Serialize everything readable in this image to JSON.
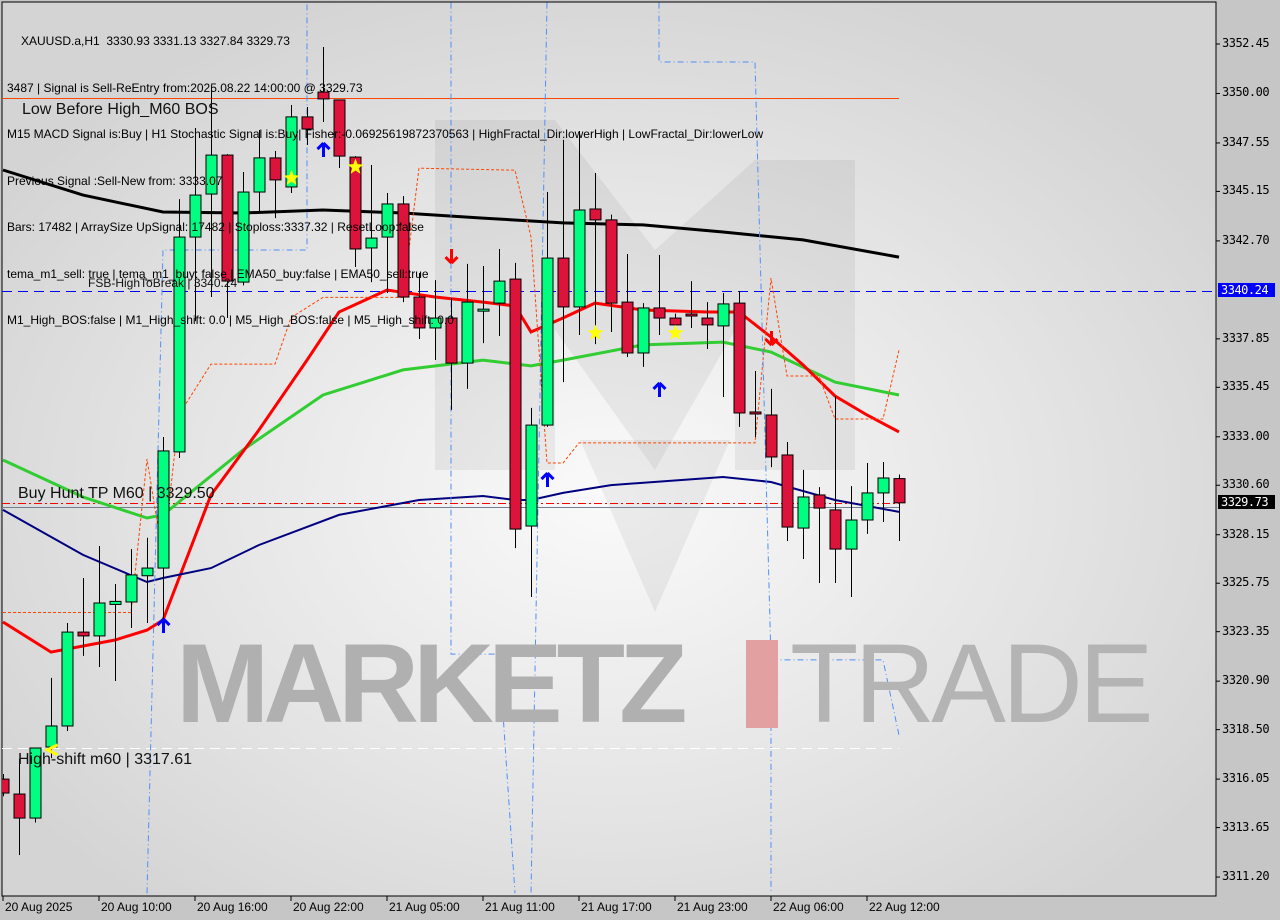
{
  "header": {
    "lines": [
      "XAUUSD.a,H1  3330.93 3331.13 3327.84 3329.73",
      "3487 | Signal is Sell-ReEntry from:2025.08.22 14:00:00 @ 3329.73",
      "M15 MACD Signal is:Buy | H1 Stochastic Signal is:Buy| Fisher:-0.06925619872370563 | HighFractal_Dir:lowerHigh | LowFractal_Dir:lowerLow",
      "Previous Signal :Sell-New from: 3333.07",
      "Bars: 17482 | ArraySize UpSignal: 17482 | Stoploss:3337.32 | ResetLoop:false",
      "tema_m1_sell: true | tema_m1_buy: false | EMA50_buy:false | EMA50_sell:true",
      "M1_High_BOS:false | M1_High_shift: 0.0 | M5_High_BOS:false | M5_High_shift: 0.0"
    ]
  },
  "watermark": {
    "part1": "MARKETZ",
    "part2": "I",
    "part3": "TRADE"
  },
  "levels": [
    {
      "label": "Low Before High_M60 BOS",
      "price": 3349.78,
      "color": "#ff4500",
      "style": "solid"
    },
    {
      "label": "FSB-HighToBreak | 3340.24",
      "price": 3340.24,
      "color": "#0000ff",
      "style": "dash"
    },
    {
      "label": "Buy Hunt TP M60 | 3329.50",
      "price": 3329.5,
      "color": "#708090",
      "style": "solid"
    },
    {
      "label": "",
      "price": 3329.73,
      "color": "#ff0000",
      "style": "dashdot"
    },
    {
      "label": "High-shift m60 | 3317.61",
      "price": 3317.61,
      "color": "#ffffff",
      "style": "dash"
    }
  ],
  "price_badges": [
    {
      "text": "3340.24",
      "bg": "#0000ff",
      "fg": "#ffffff"
    },
    {
      "text": "3329.73",
      "bg": "#000000",
      "fg": "#ffffff"
    }
  ],
  "chart_data": {
    "type": "candlestick",
    "symbol": "XAUUSD.a",
    "timeframe": "H1",
    "ylim": [
      3310.4,
      3354.5
    ],
    "y_ticks": [
      "3352.45",
      "3350.00",
      "3347.55",
      "3345.15",
      "3342.70",
      "3337.85",
      "3335.45",
      "3333.00",
      "3330.60",
      "3328.15",
      "3325.75",
      "3323.35",
      "3320.90",
      "3318.50",
      "3316.05",
      "3313.65",
      "3311.20"
    ],
    "x_tick_labels": [
      {
        "time": "20 Aug 04:00",
        "text": "20 Aug 2025"
      },
      {
        "time": "20 Aug 10:00",
        "text": "20 Aug 10:00"
      },
      {
        "time": "20 Aug 16:00",
        "text": "20 Aug 16:00"
      },
      {
        "time": "20 Aug 22:00",
        "text": "20 Aug 22:00"
      },
      {
        "time": "21 Aug 05:00",
        "text": "21 Aug 05:00"
      },
      {
        "time": "21 Aug 11:00",
        "text": "21 Aug 11:00"
      },
      {
        "time": "21 Aug 17:00",
        "text": "21 Aug 17:00"
      },
      {
        "time": "21 Aug 23:00",
        "text": "21 Aug 23:00"
      },
      {
        "time": "22 Aug 06:00",
        "text": "22 Aug 06:00"
      },
      {
        "time": "22 Aug 12:00",
        "text": "22 Aug 12:00"
      }
    ],
    "colors": {
      "bull": "#00ff80",
      "bear": "#dc143c",
      "wick": "#000000"
    },
    "candles": [
      [
        "20 Aug 04:00",
        3316.05,
        3316.3,
        3315.2,
        3315.36
      ],
      [
        "20 Aug 05:00",
        3315.31,
        3317.05,
        3312.29,
        3314.12
      ],
      [
        "20 Aug 06:00",
        3314.12,
        3317.6,
        3313.9,
        3317.59
      ],
      [
        "20 Aug 07:00",
        3317.64,
        3321.06,
        3317.09,
        3318.68
      ],
      [
        "20 Aug 08:00",
        3318.68,
        3323.78,
        3318.43,
        3323.33
      ],
      [
        "20 Aug 09:00",
        3323.33,
        3326.01,
        3322.15,
        3323.14
      ],
      [
        "20 Aug 10:00",
        3323.14,
        3327.59,
        3321.6,
        3324.77
      ],
      [
        "20 Aug 11:00",
        3324.7,
        3325.71,
        3320.91,
        3324.85
      ],
      [
        "20 Aug 12:00",
        3324.82,
        3327.44,
        3323.53,
        3326.16
      ],
      [
        "20 Aug 13:00",
        3326.12,
        3328.0,
        3323.78,
        3326.5
      ],
      [
        "20 Aug 14:00",
        3326.5,
        3332.99,
        3323.73,
        3332.3
      ],
      [
        "20 Aug 15:00",
        3332.25,
        3344.77,
        3331.95,
        3342.89
      ],
      [
        "20 Aug 16:00",
        3342.89,
        3348.29,
        3338.73,
        3344.97
      ],
      [
        "20 Aug 17:00",
        3345.02,
        3350.27,
        3339.92,
        3346.95
      ],
      [
        "20 Aug 18:00",
        3346.95,
        3347.0,
        3338.88,
        3340.71
      ],
      [
        "20 Aug 19:00",
        3340.66,
        3346.11,
        3340.5,
        3345.12
      ],
      [
        "20 Aug 20:00",
        3345.12,
        3348.19,
        3344.08,
        3346.81
      ],
      [
        "20 Aug 21:00",
        3346.81,
        3347.15,
        3343.83,
        3345.72
      ],
      [
        "20 Aug 22:00",
        3345.37,
        3349.43,
        3345.07,
        3348.84
      ],
      [
        "20 Aug 23:00",
        3348.84,
        3349.33,
        3347.45,
        3348.24
      ],
      [
        "21 Aug 01:00",
        3350.07,
        3352.3,
        3348.59,
        3349.73
      ],
      [
        "21 Aug 02:00",
        3349.68,
        3349.7,
        3346.31,
        3346.9
      ],
      [
        "21 Aug 03:00",
        3346.85,
        3346.9,
        3341.41,
        3342.3
      ],
      [
        "21 Aug 04:00",
        3342.35,
        3346.46,
        3340.66,
        3342.84
      ],
      [
        "21 Aug 05:00",
        3342.89,
        3345.07,
        3340.12,
        3344.53
      ],
      [
        "21 Aug 06:00",
        3344.53,
        3344.92,
        3339.67,
        3339.92
      ],
      [
        "21 Aug 07:00",
        3339.92,
        3341.11,
        3337.84,
        3338.39
      ],
      [
        "21 Aug 08:00",
        3338.39,
        3340.76,
        3336.8,
        3338.88
      ],
      [
        "21 Aug 09:00",
        3338.88,
        3339.87,
        3334.33,
        3336.65
      ],
      [
        "21 Aug 10:00",
        3336.65,
        3341.56,
        3335.37,
        3339.67
      ],
      [
        "21 Aug 11:00",
        3339.3,
        3341.46,
        3337.64,
        3339.32
      ],
      [
        "21 Aug 12:00",
        3339.62,
        3342.3,
        3337.99,
        3340.71
      ],
      [
        "21 Aug 13:00",
        3340.81,
        3341.61,
        3327.49,
        3328.43
      ],
      [
        "21 Aug 14:00",
        3328.58,
        3334.43,
        3325.07,
        3333.58
      ],
      [
        "21 Aug 15:00",
        3333.58,
        3345.12,
        3333.5,
        3341.85
      ],
      [
        "21 Aug 16:00",
        3341.85,
        3347.7,
        3335.71,
        3339.43
      ],
      [
        "21 Aug 17:00",
        3339.43,
        3348.14,
        3338.04,
        3344.23
      ],
      [
        "21 Aug 18:00",
        3344.28,
        3346.06,
        3337.59,
        3343.74
      ],
      [
        "21 Aug 19:00",
        3343.74,
        3344.0,
        3338.19,
        3339.62
      ],
      [
        "21 Aug 20:00",
        3339.67,
        3342.05,
        3336.95,
        3337.15
      ],
      [
        "21 Aug 21:00",
        3337.15,
        3339.62,
        3336.46,
        3339.38
      ],
      [
        "21 Aug 22:00",
        3339.38,
        3342.0,
        3338.04,
        3338.88
      ],
      [
        "21 Aug 23:00",
        3338.88,
        3339.1,
        3338.3,
        3338.54
      ],
      [
        "22 Aug 01:00",
        3339.08,
        3340.71,
        3338.39,
        3338.98
      ],
      [
        "22 Aug 02:00",
        3338.88,
        3339.67,
        3337.35,
        3338.54
      ],
      [
        "22 Aug 03:00",
        3338.49,
        3340.12,
        3334.97,
        3339.58
      ],
      [
        "22 Aug 04:00",
        3339.62,
        3340.22,
        3333.49,
        3334.18
      ],
      [
        "22 Aug 05:00",
        3334.23,
        3336.26,
        3332.99,
        3334.13
      ],
      [
        "22 Aug 06:00",
        3334.08,
        3335.37,
        3331.5,
        3332.0
      ],
      [
        "22 Aug 07:00",
        3332.1,
        3332.74,
        3327.84,
        3328.53
      ],
      [
        "22 Aug 08:00",
        3328.48,
        3331.36,
        3326.95,
        3330.02
      ],
      [
        "22 Aug 09:00",
        3330.12,
        3330.51,
        3325.76,
        3329.47
      ],
      [
        "22 Aug 10:00",
        3329.38,
        3335.02,
        3325.76,
        3327.44
      ],
      [
        "22 Aug 11:00",
        3327.44,
        3330.56,
        3325.07,
        3328.88
      ],
      [
        "22 Aug 12:00",
        3328.88,
        3331.7,
        3328.19,
        3330.22
      ],
      [
        "22 Aug 13:00",
        3330.22,
        3331.75,
        3328.78,
        3330.96
      ],
      [
        "22 Aug 14:00",
        3330.93,
        3331.13,
        3327.84,
        3329.73
      ]
    ],
    "lines": [
      {
        "color": "#000000",
        "width": 3,
        "dash": "",
        "points": [
          [
            "20 Aug 04:00",
            3346.21
          ],
          [
            "20 Aug 09:00",
            3344.97
          ],
          [
            "20 Aug 14:00",
            3344.13
          ],
          [
            "20 Aug 19:00",
            3344.08
          ],
          [
            "21 Aug 01:00",
            3344.23
          ],
          [
            "21 Aug 06:00",
            3344.08
          ],
          [
            "21 Aug 11:00",
            3343.83
          ],
          [
            "21 Aug 16:00",
            3343.59
          ],
          [
            "21 Aug 21:00",
            3343.49
          ],
          [
            "22 Aug 03:00",
            3343.14
          ],
          [
            "22 Aug 08:00",
            3342.75
          ],
          [
            "22 Aug 14:00",
            3341.9
          ]
        ]
      },
      {
        "color": "#32cd32",
        "width": 3,
        "dash": "",
        "points": [
          [
            "20 Aug 04:00",
            3331.85
          ],
          [
            "20 Aug 09:00",
            3330.02
          ],
          [
            "20 Aug 13:00",
            3328.98
          ],
          [
            "20 Aug 14:00",
            3329.13
          ],
          [
            "20 Aug 19:00",
            3332.35
          ],
          [
            "21 Aug 01:00",
            3335.07
          ],
          [
            "21 Aug 06:00",
            3336.31
          ],
          [
            "21 Aug 11:00",
            3336.8
          ],
          [
            "21 Aug 14:00",
            3336.51
          ],
          [
            "21 Aug 16:00",
            3336.8
          ],
          [
            "21 Aug 21:00",
            3337.55
          ],
          [
            "22 Aug 03:00",
            3337.69
          ],
          [
            "22 Aug 06:00",
            3337.2
          ],
          [
            "22 Aug 10:00",
            3335.71
          ],
          [
            "22 Aug 14:00",
            3335.07
          ]
        ]
      },
      {
        "color": "#ff0000",
        "width": 3,
        "dash": "",
        "points": [
          [
            "20 Aug 04:00",
            3323.83
          ],
          [
            "20 Aug 07:00",
            3322.34
          ],
          [
            "20 Aug 11:00",
            3322.94
          ],
          [
            "20 Aug 13:00",
            3323.43
          ],
          [
            "20 Aug 14:00",
            3323.93
          ],
          [
            "20 Aug 17:00",
            3330.12
          ],
          [
            "20 Aug 20:00",
            3333.34
          ],
          [
            "20 Aug 23:00",
            3336.8
          ],
          [
            "21 Aug 02:00",
            3339.18
          ],
          [
            "21 Aug 05:00",
            3340.27
          ],
          [
            "21 Aug 08:00",
            3339.92
          ],
          [
            "21 Aug 11:00",
            3339.67
          ],
          [
            "21 Aug 13:00",
            3339.48
          ],
          [
            "21 Aug 14:00",
            3338.19
          ],
          [
            "21 Aug 16:00",
            3338.88
          ],
          [
            "21 Aug 18:00",
            3339.62
          ],
          [
            "21 Aug 21:00",
            3339.28
          ],
          [
            "22 Aug 02:00",
            3339.18
          ],
          [
            "22 Aug 04:00",
            3339.18
          ],
          [
            "22 Aug 06:00",
            3337.94
          ],
          [
            "22 Aug 08:00",
            3336.56
          ],
          [
            "22 Aug 10:00",
            3335.02
          ],
          [
            "22 Aug 12:00",
            3334.08
          ],
          [
            "22 Aug 14:00",
            3333.24
          ]
        ]
      },
      {
        "color": "#000080",
        "width": 2,
        "dash": "",
        "points": [
          [
            "20 Aug 04:00",
            3329.38
          ],
          [
            "20 Aug 09:00",
            3327.15
          ],
          [
            "20 Aug 13:00",
            3325.81
          ],
          [
            "20 Aug 14:00",
            3326.01
          ],
          [
            "20 Aug 17:00",
            3326.5
          ],
          [
            "20 Aug 20:00",
            3327.64
          ],
          [
            "21 Aug 02:00",
            3329.13
          ],
          [
            "21 Aug 07:00",
            3329.87
          ],
          [
            "21 Aug 11:00",
            3330.07
          ],
          [
            "21 Aug 13:00",
            3329.87
          ],
          [
            "21 Aug 14:00",
            3329.87
          ],
          [
            "21 Aug 16:00",
            3330.22
          ],
          [
            "21 Aug 19:00",
            3330.61
          ],
          [
            "22 Aug 03:00",
            3331.01
          ],
          [
            "22 Aug 06:00",
            3330.76
          ],
          [
            "22 Aug 10:00",
            3329.87
          ],
          [
            "22 Aug 14:00",
            3329.28
          ]
        ]
      },
      {
        "color": "#ff4500",
        "width": 1,
        "dash": "3,2",
        "points": [
          [
            "20 Aug 04:00",
            3324.3
          ],
          [
            "20 Aug 12:00",
            3324.3
          ],
          [
            "20 Aug 13:00",
            3331.9
          ],
          [
            "20 Aug 14:00",
            3327.0
          ],
          [
            "20 Aug 15:00",
            3334.1
          ],
          [
            "20 Aug 17:00",
            3336.6
          ],
          [
            "20 Aug 21:00",
            3336.6
          ],
          [
            "20 Aug 22:00",
            3338.9
          ],
          [
            "21 Aug 01:00",
            3339.9
          ],
          [
            "21 Aug 06:00",
            3339.9
          ],
          [
            "21 Aug 07:00",
            3346.3
          ],
          [
            "21 Aug 13:00",
            3346.2
          ],
          [
            "21 Aug 14:00",
            3342.9
          ],
          [
            "21 Aug 15:00",
            3331.7
          ],
          [
            "21 Aug 16:00",
            3331.7
          ],
          [
            "21 Aug 17:00",
            3332.7
          ],
          [
            "22 Aug 05:00",
            3332.7
          ],
          [
            "22 Aug 06:00",
            3340.86
          ],
          [
            "22 Aug 07:00",
            3336.01
          ],
          [
            "22 Aug 09:00",
            3336.01
          ],
          [
            "22 Aug 10:00",
            3333.88
          ],
          [
            "22 Aug 13:00",
            3333.88
          ],
          [
            "22 Aug 14:00",
            3337.3
          ]
        ]
      },
      {
        "color": "#4f8ff7",
        "width": 1,
        "dash": "6,3,1,3",
        "points": [
          [
            "20 Aug 13:00",
            3310.4
          ],
          [
            "20 Aug 14:00",
            3342.25
          ],
          [
            "20 Aug 23:00",
            3342.25
          ],
          [
            "20 Aug 23:00",
            3354.5
          ]
        ]
      },
      {
        "color": "#4f8ff7",
        "width": 1,
        "dash": "6,3,1,3",
        "points": [
          [
            "21 Aug 09:00",
            3354.5
          ],
          [
            "21 Aug 09:00",
            3322.24
          ],
          [
            "21 Aug 12:00",
            3322.24
          ],
          [
            "21 Aug 13:00",
            3310.4
          ]
        ]
      },
      {
        "color": "#4f8ff7",
        "width": 1,
        "dash": "6,3,1,3",
        "points": [
          [
            "21 Aug 15:00",
            3354.5
          ],
          [
            "21 Aug 14:00",
            3310.4
          ]
        ]
      },
      {
        "color": "#4f8ff7",
        "width": 1,
        "dash": "6,3,1,3",
        "points": [
          [
            "21 Aug 22:00",
            3354.5
          ],
          [
            "21 Aug 22:00",
            3351.56
          ],
          [
            "22 Aug 05:00",
            3351.56
          ],
          [
            "22 Aug 06:00",
            3321.95
          ],
          [
            "22 Aug 13:00",
            3321.95
          ],
          [
            "22 Aug 14:00",
            3318.23
          ]
        ]
      },
      {
        "color": "#4f8ff7",
        "width": 1,
        "dash": "6,3,1,3",
        "points": [
          [
            "22 Aug 06:00",
            3321.95
          ],
          [
            "22 Aug 06:00",
            3310.4
          ]
        ]
      }
    ],
    "markers": [
      {
        "type": "arrow-up",
        "time": "20 Aug 14:00",
        "price": 3323.63,
        "color": "#0000ff"
      },
      {
        "type": "arrow-up",
        "time": "21 Aug 01:00",
        "price": 3347.2,
        "color": "#0000ff"
      },
      {
        "type": "arrow-up",
        "time": "21 Aug 15:00",
        "price": 3330.86,
        "color": "#0000ff"
      },
      {
        "type": "arrow-up",
        "time": "21 Aug 22:00",
        "price": 3335.32,
        "color": "#0000ff"
      },
      {
        "type": "arrow-down",
        "time": "21 Aug 09:00",
        "price": 3341.95,
        "color": "#ff0000"
      },
      {
        "type": "arrow-down",
        "time": "22 Aug 06:00",
        "price": 3337.89,
        "color": "#ff0000"
      },
      {
        "type": "star",
        "time": "20 Aug 22:00",
        "price": 3345.81,
        "color": "#ffff00"
      },
      {
        "type": "star",
        "time": "21 Aug 03:00",
        "price": 3346.36,
        "color": "#ffff00"
      },
      {
        "type": "star",
        "time": "21 Aug 18:00",
        "price": 3338.14,
        "color": "#ffff00"
      },
      {
        "type": "star",
        "time": "21 Aug 23:00",
        "price": 3338.14,
        "color": "#ffff00"
      },
      {
        "type": "cross",
        "time": "20 Aug 07:00",
        "price": 3317.5,
        "color": "#ffff00"
      }
    ]
  }
}
